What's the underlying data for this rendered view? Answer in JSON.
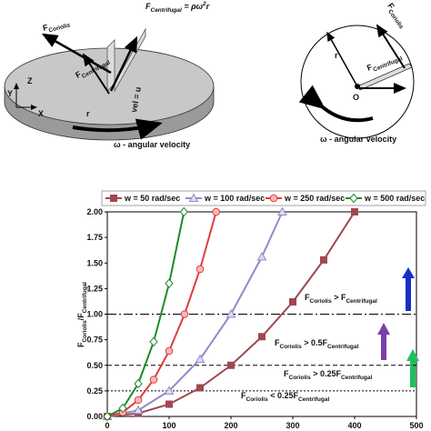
{
  "diagrams": {
    "title": [
      "F",
      "Centrifugal",
      " = ρω",
      "2",
      "r"
    ],
    "left": {
      "coriolis": [
        "F",
        "Coriolis"
      ],
      "centrifugal": [
        "F",
        "Centrifugal"
      ],
      "radius": "r",
      "velocity": "vel = u",
      "axis_y": "Y",
      "axis_z": "Z",
      "axis_x": "X",
      "omega": "ω - angular velocity"
    },
    "right": {
      "coriolis": [
        "F",
        "Coriolis"
      ],
      "centrifugal": [
        "F",
        "Centrifugal"
      ],
      "radius": "r",
      "origin": "O",
      "omega": "ω - angular velocity"
    }
  },
  "chart_data": {
    "type": "line",
    "y_label": [
      "F",
      "Coriolis",
      "/F",
      "Centrifugal"
    ],
    "series": [
      {
        "name": "w = 50 rad/sec",
        "color": "#a0474f",
        "marker": "square",
        "x": [
          0,
          50,
          100,
          150,
          200,
          250,
          300,
          350,
          400
        ],
        "values": [
          0,
          0.03,
          0.12,
          0.28,
          0.5,
          0.78,
          1.12,
          1.53,
          2.0
        ]
      },
      {
        "name": "w = 100 rad/sec",
        "color": "#8c8cc8",
        "marker": "triangle",
        "x": [
          0,
          50,
          100,
          150,
          200,
          250,
          283
        ],
        "values": [
          0,
          0.06,
          0.25,
          0.56,
          1.0,
          1.56,
          2.0
        ]
      },
      {
        "name": "w = 250 rad/sec",
        "color": "#e03c3c",
        "marker": "circle",
        "x": [
          0,
          25,
          50,
          75,
          100,
          125,
          150,
          176
        ],
        "values": [
          0,
          0.04,
          0.16,
          0.36,
          0.64,
          1.0,
          1.44,
          2.0
        ]
      },
      {
        "name": "w = 500 rad/sec",
        "color": "#1f8a2e",
        "marker": "diamond",
        "x": [
          0,
          25,
          50,
          75,
          100,
          124
        ],
        "values": [
          0,
          0.08,
          0.32,
          0.73,
          1.3,
          2.0
        ]
      }
    ],
    "xlim": [
      0,
      500
    ],
    "xticks": [
      0,
      100,
      200,
      300,
      400,
      500
    ],
    "ylim": [
      0,
      2
    ],
    "yticks": [
      {
        "value": 0,
        "label": "0.00"
      },
      {
        "value": 0.25,
        "label": "0.25"
      },
      {
        "value": 0.5,
        "label": "0.50"
      },
      {
        "value": 0.75,
        "label": "0.75"
      },
      {
        "value": 1,
        "label": "1.00"
      },
      {
        "value": 1.25,
        "label": "1.25"
      },
      {
        "value": 1.5,
        "label": "1.50"
      },
      {
        "value": 1.75,
        "label": "1.75"
      },
      {
        "value": 2,
        "label": "2.00"
      }
    ],
    "reference_lines": [
      {
        "value": 1,
        "dash": "10 3 2 3"
      },
      {
        "value": 0.5,
        "dash": "5 3"
      },
      {
        "value": 0.25,
        "dash": "2 2"
      }
    ],
    "annotations": [
      [
        "F",
        "Coriolis",
        " > F",
        "Centrifugal"
      ],
      [
        "F",
        "Coriolis",
        " > 0.5F",
        "Centrifugal"
      ],
      [
        "F",
        "Coriolis",
        " > 0.25F",
        "Centrifugal"
      ],
      [
        "F",
        "Coriolis",
        " < 0.25F",
        "Centrifugal"
      ]
    ]
  }
}
